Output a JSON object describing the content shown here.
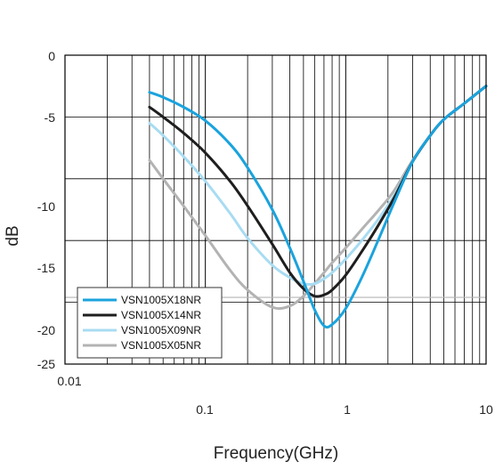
{
  "chart_data": {
    "type": "line",
    "xlabel": "Frequency(GHz)",
    "ylabel": "dB",
    "xscale": "log",
    "xlim": [
      0.01,
      10
    ],
    "ylim": [
      -25,
      0
    ],
    "x_tick_labels": [
      "0.01",
      "0.1",
      "1",
      "10"
    ],
    "y_tick_labels": [
      "0",
      "-5",
      "-10",
      "-15",
      "-20",
      "-25"
    ],
    "grid": true,
    "legend_position": "bottom-left",
    "colors": {
      "frame": "#000000",
      "grid": "#000000",
      "reference_line": "#b5b5b5"
    },
    "reference_line_y": -19.6,
    "series": [
      {
        "name": "VSN1005X18NR",
        "color": "#1aa3dd",
        "x": [
          0.04,
          0.05,
          0.07,
          0.1,
          0.15,
          0.2,
          0.3,
          0.4,
          0.5,
          0.6,
          0.7,
          0.8,
          1.0,
          1.3,
          1.7,
          2.2,
          3,
          4,
          5,
          7,
          10
        ],
        "y": [
          -3.0,
          -3.4,
          -4.2,
          -5.3,
          -7.2,
          -9.1,
          -12.5,
          -15.6,
          -18.3,
          -20.6,
          -21.9,
          -21.8,
          -20.5,
          -18.0,
          -15.0,
          -12.0,
          -8.6,
          -6.5,
          -5.2,
          -3.9,
          -2.5
        ]
      },
      {
        "name": "VSN1005X14NR",
        "color": "#1e1e1e",
        "x": [
          0.04,
          0.05,
          0.07,
          0.1,
          0.15,
          0.2,
          0.3,
          0.4,
          0.5,
          0.6,
          0.7,
          0.8,
          1.0,
          1.3,
          1.7,
          2.2,
          3,
          4,
          5,
          7,
          10
        ],
        "y": [
          -4.2,
          -5.0,
          -6.3,
          -7.9,
          -10.2,
          -12.2,
          -15.3,
          -17.6,
          -18.9,
          -19.5,
          -19.4,
          -19.0,
          -17.8,
          -15.9,
          -13.8,
          -11.6,
          -8.6,
          -6.5,
          -5.2,
          -3.9,
          -2.5
        ]
      },
      {
        "name": "VSN1005X09NR",
        "color": "#a8dcf2",
        "x": [
          0.04,
          0.05,
          0.07,
          0.1,
          0.15,
          0.2,
          0.3,
          0.4,
          0.5,
          0.6,
          0.7,
          0.8,
          1.0,
          1.3,
          1.7,
          2.2,
          3,
          4,
          5,
          7,
          10
        ],
        "y": [
          -5.5,
          -6.5,
          -8.2,
          -10.2,
          -12.8,
          -14.8,
          -17.0,
          -18.0,
          -18.5,
          -18.5,
          -18.1,
          -17.6,
          -16.5,
          -15.0,
          -13.3,
          -11.4,
          -8.6,
          -6.5,
          -5.2,
          -3.9,
          -2.5
        ]
      },
      {
        "name": "VSN1005X05NR",
        "color": "#b3b3b3",
        "x": [
          0.04,
          0.05,
          0.07,
          0.1,
          0.15,
          0.2,
          0.3,
          0.4,
          0.5,
          0.6,
          0.7,
          0.8,
          1.0,
          1.3,
          1.7,
          2.2,
          3,
          4,
          5,
          7,
          10
        ],
        "y": [
          -8.5,
          -10.0,
          -12.2,
          -14.6,
          -17.4,
          -19.0,
          -20.4,
          -20.3,
          -19.5,
          -18.5,
          -17.6,
          -16.8,
          -15.6,
          -14.1,
          -12.6,
          -11.0,
          -8.5,
          -6.5,
          -5.2,
          -3.9,
          -2.5
        ]
      }
    ]
  }
}
